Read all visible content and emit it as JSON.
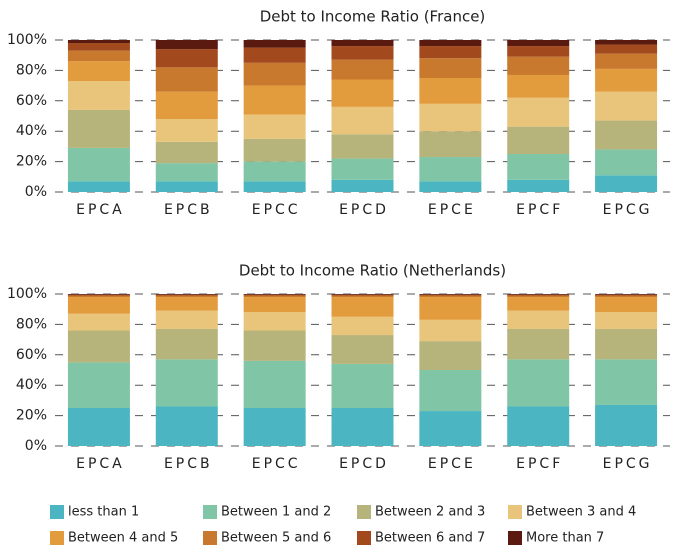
{
  "chart_data": [
    {
      "type": "stacked_bar",
      "title": "Debt to Income Ratio (France)",
      "categories": [
        "EPCA",
        "EPCB",
        "EPCC",
        "EPCD",
        "EPCE",
        "EPCF",
        "EPCG"
      ],
      "ylim": [
        0,
        100
      ],
      "yticks": [
        {
          "value": 0,
          "label": "0%"
        },
        {
          "value": 20,
          "label": "20%"
        },
        {
          "value": 40,
          "label": "40%"
        },
        {
          "value": 60,
          "label": "60%"
        },
        {
          "value": 80,
          "label": "80%"
        },
        {
          "value": 100,
          "label": "100%"
        }
      ],
      "grid": true,
      "series": [
        {
          "name": "less than 1",
          "color": "#4bb6c1",
          "values": [
            7,
            7,
            7,
            8,
            7,
            8,
            11
          ]
        },
        {
          "name": "Between 1 and 2",
          "color": "#80c6a6",
          "values": [
            22,
            12,
            13,
            14,
            16,
            17,
            17
          ]
        },
        {
          "name": "Between 2 and 3",
          "color": "#b7b47b",
          "values": [
            25,
            14,
            15,
            16,
            17,
            18,
            19
          ]
        },
        {
          "name": "Between 3 and 4",
          "color": "#e8c57b",
          "values": [
            19,
            15,
            16,
            18,
            18,
            19,
            19
          ]
        },
        {
          "name": "Between 4 and 5",
          "color": "#e39c3d",
          "values": [
            13,
            18,
            19,
            18,
            17,
            15,
            15
          ]
        },
        {
          "name": "Between 5 and 6",
          "color": "#c8792d",
          "values": [
            7,
            16,
            15,
            13,
            13,
            12,
            10
          ]
        },
        {
          "name": "Between 6 and 7",
          "color": "#a24a1d",
          "values": [
            5,
            12,
            10,
            9,
            8,
            7,
            6
          ]
        },
        {
          "name": "More than 7",
          "color": "#5b1a10",
          "values": [
            2,
            6,
            5,
            4,
            4,
            4,
            3
          ]
        }
      ]
    },
    {
      "type": "stacked_bar",
      "title": "Debt to Income Ratio (Netherlands)",
      "categories": [
        "EPCA",
        "EPCB",
        "EPCC",
        "EPCD",
        "EPCE",
        "EPCF",
        "EPCG"
      ],
      "ylim": [
        0,
        100
      ],
      "yticks": [
        {
          "value": 0,
          "label": "0%"
        },
        {
          "value": 20,
          "label": "20%"
        },
        {
          "value": 40,
          "label": "40%"
        },
        {
          "value": 60,
          "label": "60%"
        },
        {
          "value": 80,
          "label": "80%"
        },
        {
          "value": 100,
          "label": "100%"
        }
      ],
      "grid": true,
      "series": [
        {
          "name": "less than 1",
          "color": "#4bb6c1",
          "values": [
            25,
            26,
            25,
            25,
            23,
            26,
            27
          ]
        },
        {
          "name": "Between 1 and 2",
          "color": "#80c6a6",
          "values": [
            30,
            31,
            31,
            29,
            27,
            31,
            30
          ]
        },
        {
          "name": "Between 2 and 3",
          "color": "#b7b47b",
          "values": [
            21,
            20,
            20,
            19,
            19,
            20,
            20
          ]
        },
        {
          "name": "Between 3 and 4",
          "color": "#e8c57b",
          "values": [
            11,
            12,
            12,
            12,
            14,
            12,
            11
          ]
        },
        {
          "name": "Between 4 and 5",
          "color": "#e39c3d",
          "values": [
            11,
            9,
            10,
            13,
            15,
            9,
            10
          ]
        },
        {
          "name": "Between 5 and 6",
          "color": "#c8792d",
          "values": [
            1,
            1,
            1,
            1,
            1,
            1,
            1
          ]
        },
        {
          "name": "Between 6 and 7",
          "color": "#a24a1d",
          "values": [
            0.5,
            0.5,
            0.5,
            0.5,
            0.5,
            0.5,
            0.5
          ]
        },
        {
          "name": "More than 7",
          "color": "#5b1a10",
          "values": [
            0.5,
            0.5,
            0.5,
            0.5,
            0.5,
            0.5,
            0.5
          ]
        }
      ]
    }
  ]
}
